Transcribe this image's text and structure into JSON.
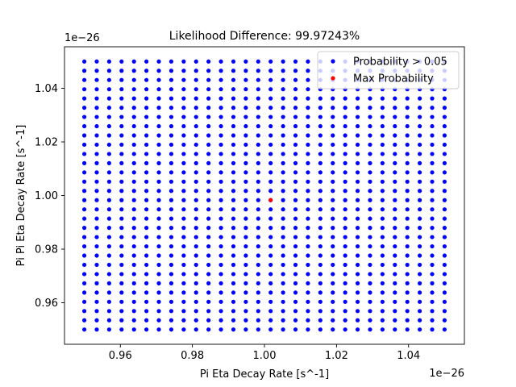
{
  "chart_data": {
    "type": "scatter",
    "title": "Likelihood Difference: 99.97243%",
    "xlabel": "Pi Eta Decay Rate [s^-1]",
    "ylabel": "Pi Pi Eta Decay Rate [s^-1]",
    "x_offset_label": "1e−26",
    "y_offset_label": "1e−26",
    "xlim": [
      0.9445,
      1.0555
    ],
    "ylim": [
      0.9445,
      1.0555
    ],
    "xticks": [
      0.96,
      0.98,
      1.0,
      1.02,
      1.04
    ],
    "yticks": [
      0.96,
      0.98,
      1.0,
      1.02,
      1.04
    ],
    "xtick_labels": [
      "0.96",
      "0.98",
      "1.00",
      "1.02",
      "1.04"
    ],
    "ytick_labels": [
      "0.96",
      "0.98",
      "1.00",
      "1.02",
      "1.04"
    ],
    "legend_position": "top-right",
    "grid": false,
    "series": [
      {
        "name": "Probability > 0.05",
        "color": "#0000ff",
        "grid_points": {
          "x_start": 0.95,
          "x_stop": 1.05,
          "x_count": 30,
          "y_start": 0.95,
          "y_stop": 1.05,
          "y_count": 30
        }
      },
      {
        "name": "Max Probability",
        "color": "#ff0000",
        "points": [
          {
            "x": 1.0017,
            "y": 0.9983
          }
        ]
      }
    ]
  }
}
